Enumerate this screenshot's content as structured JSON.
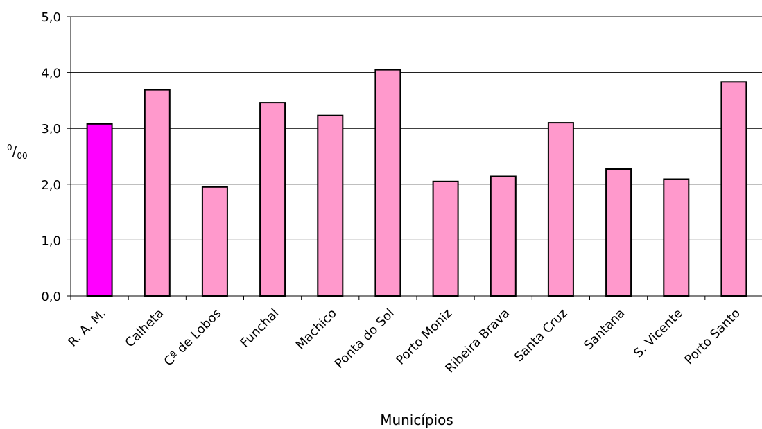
{
  "chart_data": {
    "type": "bar",
    "categories": [
      "R. A. M.",
      "Calheta",
      "Cª de Lobos",
      "Funchal",
      "Machico",
      "Ponta do Sol",
      "Porto Moniz",
      "Ribeira Brava",
      "Santa Cruz",
      "Santana",
      "S. Vicente",
      "Porto Santo"
    ],
    "values": [
      3.08,
      3.69,
      1.95,
      3.46,
      3.23,
      4.05,
      2.05,
      2.14,
      3.1,
      2.27,
      2.09,
      3.83
    ],
    "highlight_index": 0,
    "colors": {
      "bar": "#FF99CC",
      "highlight": "#FF00FF",
      "outline": "#000000",
      "grid": "#000000"
    },
    "y_ticks": [
      "0,0",
      "1,0",
      "2,0",
      "3,0",
      "4,0",
      "5,0"
    ],
    "ylim": [
      0,
      5
    ],
    "grid": true,
    "xlabel": "Municípios",
    "ylabel": {
      "superscript": "0",
      "slash": "/",
      "subscript": "00"
    }
  }
}
